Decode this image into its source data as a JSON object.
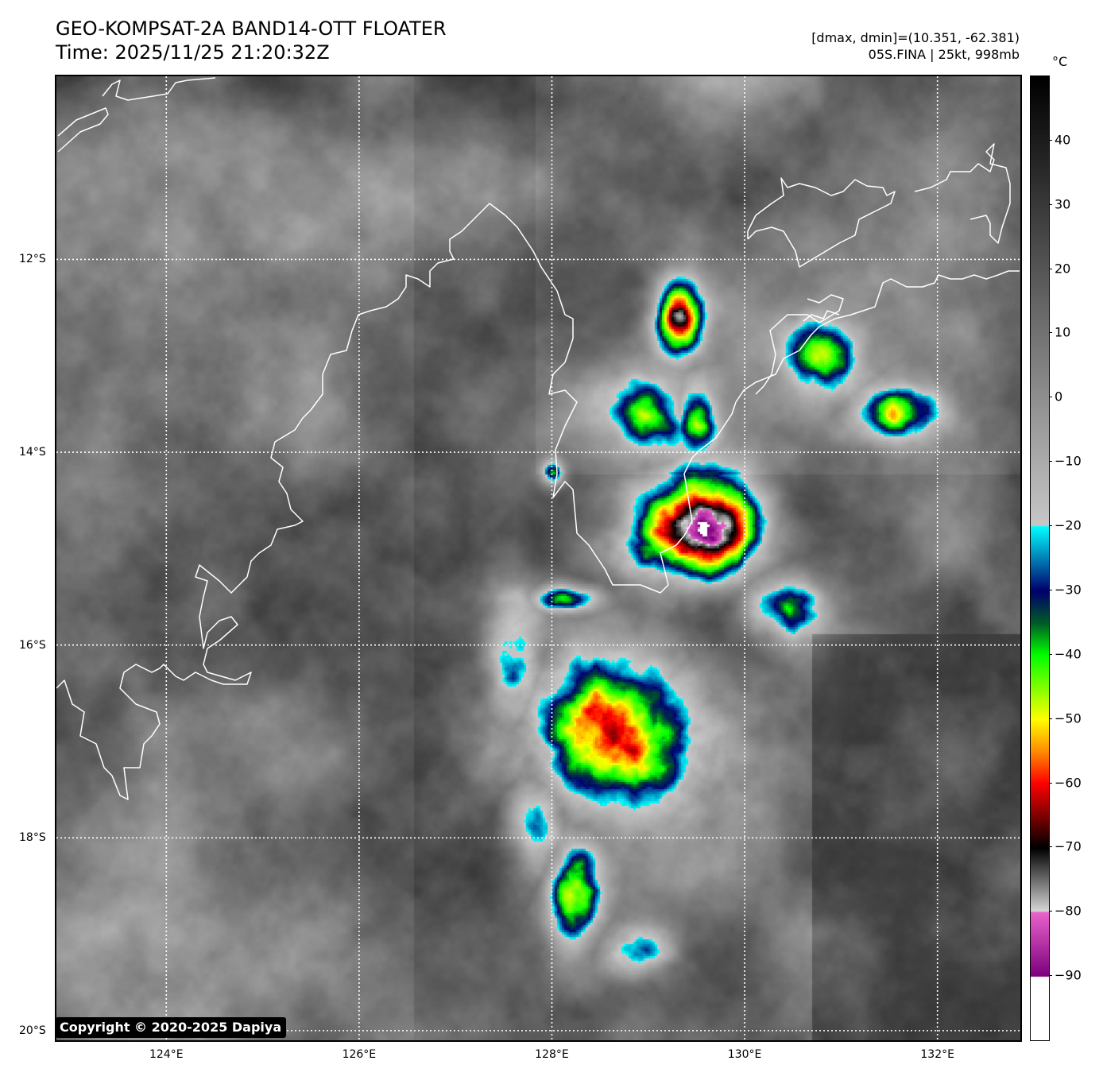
{
  "header": {
    "title_line1": "GEO-KOMPSAT-2A BAND14-OTT FLOATER",
    "title_line2": "Time: 2025/11/25 21:20:32Z",
    "range_text": "[dmax, dmin]=(10.351, -62.381)",
    "storm_text": "05S.FINA | 25kt, 998mb"
  },
  "map": {
    "lon_range": [
      122.86,
      132.86
    ],
    "lat_range": [
      -10.1,
      -20.1
    ],
    "lon_ticks": [
      {
        "value": 124,
        "label": "124°E"
      },
      {
        "value": 126,
        "label": "126°E"
      },
      {
        "value": 128,
        "label": "128°E"
      },
      {
        "value": 130,
        "label": "130°E"
      },
      {
        "value": 132,
        "label": "132°E"
      }
    ],
    "lat_ticks": [
      {
        "value": -12,
        "label": "12°S"
      },
      {
        "value": -14,
        "label": "14°S"
      },
      {
        "value": -16,
        "label": "16°S"
      },
      {
        "value": -18,
        "label": "18°S"
      },
      {
        "value": -20,
        "label": "20°S"
      }
    ],
    "copyright": "Copyright © 2020-2025 Dapiya"
  },
  "colorbar": {
    "unit": "°C",
    "range": [
      50,
      -100
    ],
    "ticks": [
      {
        "value": 40,
        "label": "40"
      },
      {
        "value": 30,
        "label": "30"
      },
      {
        "value": 20,
        "label": "20"
      },
      {
        "value": 10,
        "label": "10"
      },
      {
        "value": 0,
        "label": "0"
      },
      {
        "value": -10,
        "label": "−10"
      },
      {
        "value": -20,
        "label": "−20"
      },
      {
        "value": -30,
        "label": "−30"
      },
      {
        "value": -40,
        "label": "−40"
      },
      {
        "value": -50,
        "label": "−50"
      },
      {
        "value": -60,
        "label": "−60"
      },
      {
        "value": -70,
        "label": "−70"
      },
      {
        "value": -80,
        "label": "−80"
      },
      {
        "value": -90,
        "label": "−90"
      }
    ]
  }
}
